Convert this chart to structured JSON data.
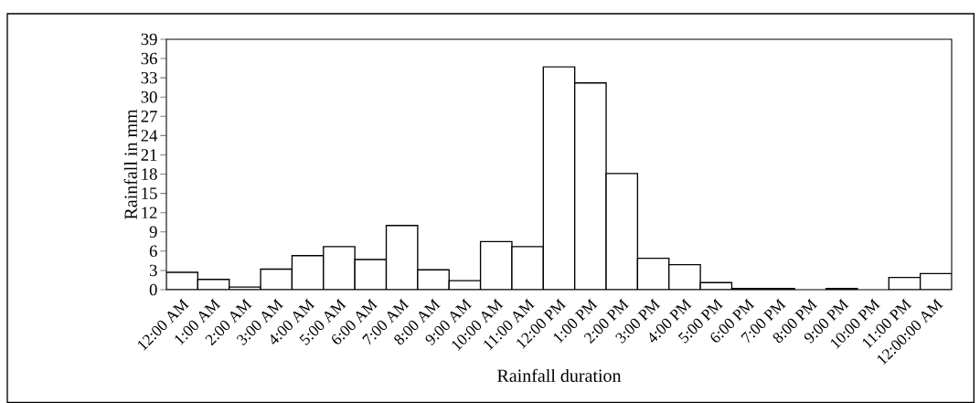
{
  "chart_data": {
    "type": "bar",
    "xlabel": "Rainfall duration",
    "ylabel": "Rainfall in mm",
    "categories": [
      "12:00 AM",
      "1:00 AM",
      "2:00 AM",
      "3:00 AM",
      "4:00 AM",
      "5:00 AM",
      "6:00 AM",
      "7:00 AM",
      "8:00 AM",
      "9:00 AM",
      "10:00 AM",
      "11:00 AM",
      "12:00 PM",
      "1:00 PM",
      "2:00 PM",
      "3:00 PM",
      "4:00 PM",
      "5:00 PM",
      "6:00 PM",
      "7:00 PM",
      "8:00 PM",
      "9:00 PM",
      "10:00 PM",
      "11:00 PM",
      "12:00:00 AM"
    ],
    "values": [
      2.7,
      1.6,
      0.4,
      3.2,
      5.3,
      6.7,
      4.7,
      10.0,
      3.1,
      1.4,
      7.5,
      6.7,
      34.7,
      32.2,
      18.1,
      4.9,
      3.9,
      1.1,
      0.2,
      0.2,
      0,
      0.2,
      0,
      1.9,
      2.5
    ],
    "color": "#ffffff",
    "ylim": [
      0,
      39
    ],
    "yticks": [
      0,
      3,
      6,
      9,
      12,
      15,
      18,
      21,
      24,
      27,
      30,
      33,
      36,
      39
    ]
  }
}
